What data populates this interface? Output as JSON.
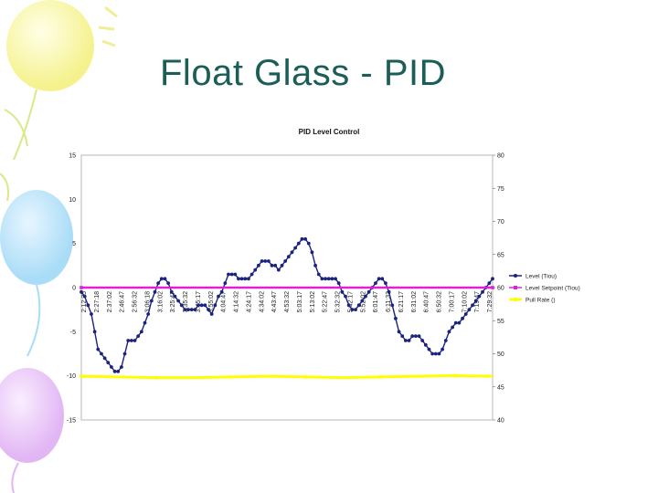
{
  "slide": {
    "title": "Float Glass - PID"
  },
  "colors": {
    "title": "#1b5e57",
    "level": "#1a237e",
    "setpoint": "#e020d8",
    "pull_rate": "#ffff00"
  },
  "chart_data": {
    "type": "line",
    "title": "PID Level Control",
    "ylim": [
      -15,
      15
    ],
    "y_ticks": [
      "15",
      "10",
      "5",
      "0",
      "-5",
      "-10",
      "-15"
    ],
    "y2lim": [
      40,
      80
    ],
    "y2_ticks": [
      "80",
      "75",
      "70",
      "65",
      "60",
      "55",
      "50",
      "45",
      "40"
    ],
    "legend_position": "right",
    "x_tick_labels": [
      "2:12:25",
      "2:27:18",
      "2:37:02",
      "2:46:47",
      "2:56:32",
      "3:06:18",
      "3:16:02",
      "3:25:47",
      "3:35:32",
      "3:45:17",
      "3:55:02",
      "4:04:47",
      "4:14:32",
      "4:24:17",
      "4:34:02",
      "4:43:47",
      "4:53:32",
      "5:03:17",
      "5:13:02",
      "5:22:47",
      "5:32:32",
      "5:42:17",
      "5:52:02",
      "6:01:47",
      "6:11:32",
      "6:21:17",
      "6:31:02",
      "6:40:47",
      "6:50:32",
      "7:00:17",
      "7:10:02",
      "7:19:47",
      "7:29:32"
    ],
    "series": [
      {
        "name": "Level (Tiou)",
        "axis": "left",
        "values": [
          -0.5,
          -1,
          -2,
          -3,
          -5,
          -7,
          -7.5,
          -8,
          -8.5,
          -9,
          -9.5,
          -9.5,
          -9,
          -7.5,
          -6,
          -6,
          -6,
          -5.5,
          -5,
          -4,
          -3,
          -1.5,
          -0.5,
          0.5,
          1,
          1,
          0.5,
          -0.5,
          -1,
          -1.5,
          -2,
          -2.5,
          -2.5,
          -2.5,
          -2.5,
          -2,
          -2,
          -2,
          -2.5,
          -3,
          -2,
          -1,
          -0.5,
          0.5,
          1.5,
          1.5,
          1.5,
          1,
          1,
          1,
          1,
          1.5,
          2,
          2.5,
          3,
          3,
          3,
          2.5,
          2.5,
          2,
          2.5,
          3,
          3.5,
          4,
          4.5,
          5,
          5.5,
          5.5,
          5,
          4,
          2.5,
          1.5,
          1,
          1,
          1,
          1,
          1,
          0.5,
          -0.5,
          -1,
          -2,
          -2.5,
          -2.5,
          -2,
          -1.5,
          -1,
          -0.5,
          0,
          0.5,
          1,
          1,
          0.5,
          -0.5,
          -2,
          -3.5,
          -5,
          -5.5,
          -6,
          -6,
          -5.5,
          -5.5,
          -5.5,
          -6,
          -6.5,
          -7,
          -7.5,
          -7.5,
          -7.5,
          -7,
          -6,
          -5,
          -4.5,
          -4,
          -4,
          -3.5,
          -3,
          -2.5,
          -2,
          -1.5,
          -1,
          -0.5,
          0,
          0.5,
          1
        ]
      },
      {
        "name": "Level Setpoint (Tiou)",
        "axis": "left",
        "values": [
          0,
          0
        ]
      },
      {
        "name": "Pull Rate ()",
        "axis": "right",
        "values": [
          46.6,
          46.5,
          46.4,
          46.4,
          46.5,
          46.6,
          46.5,
          46.4,
          46.5,
          46.6,
          46.7,
          46.6
        ]
      }
    ]
  }
}
